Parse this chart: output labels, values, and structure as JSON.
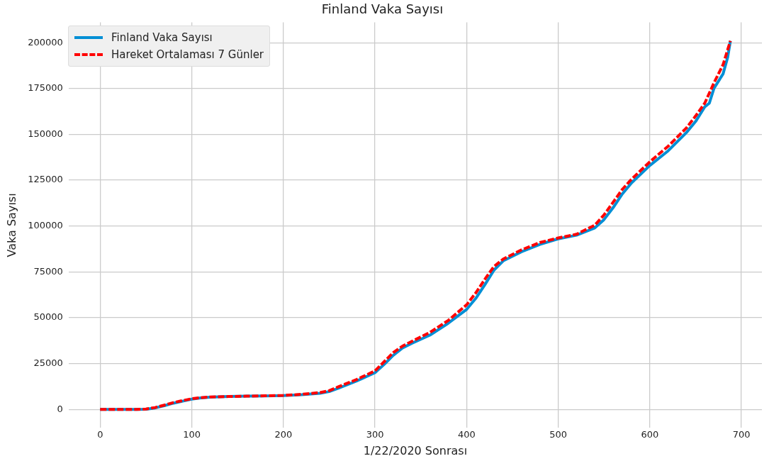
{
  "chart_data": {
    "type": "line",
    "title": "Finland Vaka Sayısı",
    "xlabel": "1/22/2020 Sonrası",
    "ylabel": "Vaka Sayısı",
    "xlim": [
      -34.4,
      722.4
    ],
    "ylim": [
      -10050,
      211050
    ],
    "xticks": [
      0,
      100,
      200,
      300,
      400,
      500,
      600,
      700
    ],
    "yticks": [
      0,
      25000,
      50000,
      75000,
      100000,
      125000,
      150000,
      175000,
      200000
    ],
    "grid": true,
    "legend": "top left",
    "marker": "none",
    "series": [
      {
        "name": "Finland Vaka Sayısı",
        "color": "#008fd5",
        "line_style": "solid",
        "x": [
          0,
          40,
          50,
          60,
          70,
          80,
          90,
          100,
          110,
          120,
          140,
          160,
          180,
          200,
          220,
          240,
          250,
          260,
          280,
          300,
          310,
          320,
          330,
          340,
          360,
          380,
          400,
          410,
          420,
          430,
          440,
          460,
          480,
          500,
          520,
          540,
          550,
          560,
          570,
          580,
          600,
          620,
          640,
          650,
          660,
          665,
          670,
          680,
          685,
          688
        ],
        "values": [
          0,
          0,
          100,
          800,
          2000,
          3400,
          4500,
          5600,
          6300,
          6700,
          7000,
          7200,
          7300,
          7500,
          8000,
          8800,
          9700,
          11500,
          15500,
          20000,
          24500,
          29500,
          33500,
          36000,
          40500,
          47000,
          54500,
          60500,
          68000,
          76000,
          81000,
          86000,
          90000,
          93000,
          95000,
          99000,
          103500,
          110000,
          117500,
          123500,
          133000,
          141000,
          151000,
          157000,
          165000,
          167000,
          175000,
          183000,
          192000,
          201000
        ]
      },
      {
        "name": "Hareket Ortalaması 7 Günler",
        "color": "#ff0000",
        "line_style": "dashed",
        "x": [
          0,
          40,
          50,
          60,
          70,
          80,
          90,
          100,
          110,
          120,
          140,
          160,
          180,
          200,
          220,
          240,
          250,
          260,
          280,
          300,
          310,
          320,
          330,
          340,
          360,
          380,
          400,
          410,
          420,
          430,
          440,
          460,
          480,
          500,
          520,
          540,
          550,
          560,
          570,
          580,
          600,
          620,
          640,
          650,
          660,
          670,
          680,
          688
        ],
        "values": [
          0,
          0,
          200,
          1000,
          2300,
          3700,
          4800,
          5800,
          6400,
          6800,
          7000,
          7200,
          7400,
          7600,
          8200,
          9200,
          10200,
          12300,
          16300,
          21000,
          26000,
          31000,
          34500,
          37000,
          42000,
          48500,
          57000,
          63500,
          71000,
          78000,
          82000,
          87000,
          91000,
          93500,
          95500,
          100500,
          106000,
          113000,
          120000,
          125500,
          135000,
          143500,
          153500,
          160000,
          167000,
          178000,
          188000,
          201000
        ]
      }
    ]
  }
}
